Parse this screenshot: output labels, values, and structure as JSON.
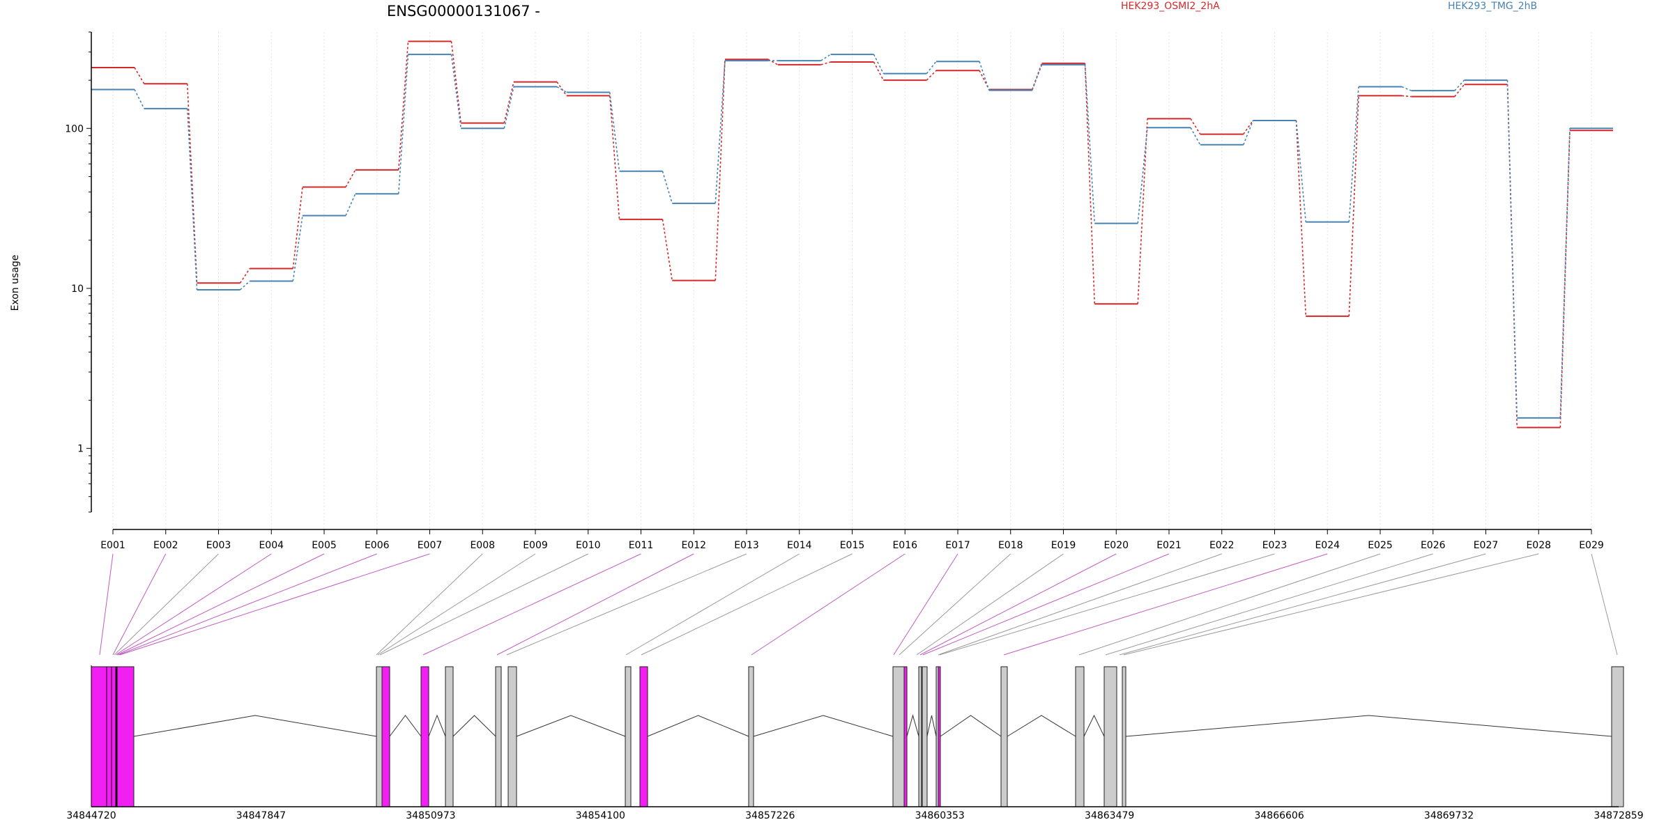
{
  "chart_data": {
    "type": "line",
    "title": "ENSG00000131067 -",
    "ylabel": "Exon usage",
    "yscale": "log",
    "ylim": [
      0.4,
      400
    ],
    "yticks": [
      1,
      10,
      100
    ],
    "ytick_labels": [
      "1",
      "10",
      "100"
    ],
    "grid": "vertical dotted lines at exon bins",
    "legend_placement": "top",
    "categories": [
      "E001",
      "E002",
      "E003",
      "E004",
      "E005",
      "E006",
      "E007",
      "E008",
      "E009",
      "E010",
      "E011",
      "E012",
      "E013",
      "E014",
      "E015",
      "E016",
      "E017",
      "E018",
      "E019",
      "E020",
      "E021",
      "E022",
      "E023",
      "E024",
      "E025",
      "E026",
      "E027",
      "E028",
      "E029"
    ],
    "series": [
      {
        "name": "HEK293_OSMI2_2hA",
        "color": "#d62728",
        "values": [
          240,
          190,
          10.8,
          13.3,
          43,
          55,
          350,
          108,
          195,
          160,
          27,
          11.2,
          270,
          250,
          260,
          200,
          230,
          175,
          255,
          8,
          115,
          92,
          112,
          6.7,
          160,
          158,
          188,
          1.35,
          97
        ]
      },
      {
        "name": "HEK293_TMG_2hB",
        "color": "#4682b4",
        "values": [
          175,
          133,
          9.8,
          11.1,
          28.5,
          39,
          290,
          100,
          182,
          168,
          54,
          34,
          265,
          265,
          290,
          220,
          262,
          173,
          250,
          25.5,
          101,
          79,
          112,
          26,
          182,
          172,
          200,
          1.55,
          100
        ]
      }
    ],
    "genomic_axis": {
      "start": 34844720,
      "end": 34872859,
      "tick_labels": [
        "34844720",
        "34847847",
        "34850973",
        "34854100",
        "34857226",
        "34860353",
        "34863479",
        "34866606",
        "34869732",
        "34872859"
      ]
    },
    "exon_colors": {
      "significant": "#f21ff2",
      "normal": "#cccccc",
      "link_significant": "#c05cc0",
      "link_normal": "#999999"
    },
    "significant_bins": [
      "E001",
      "E002",
      "E004",
      "E005",
      "E006",
      "E007",
      "E011",
      "E012",
      "E016",
      "E017",
      "E020",
      "E021",
      "E024"
    ]
  }
}
